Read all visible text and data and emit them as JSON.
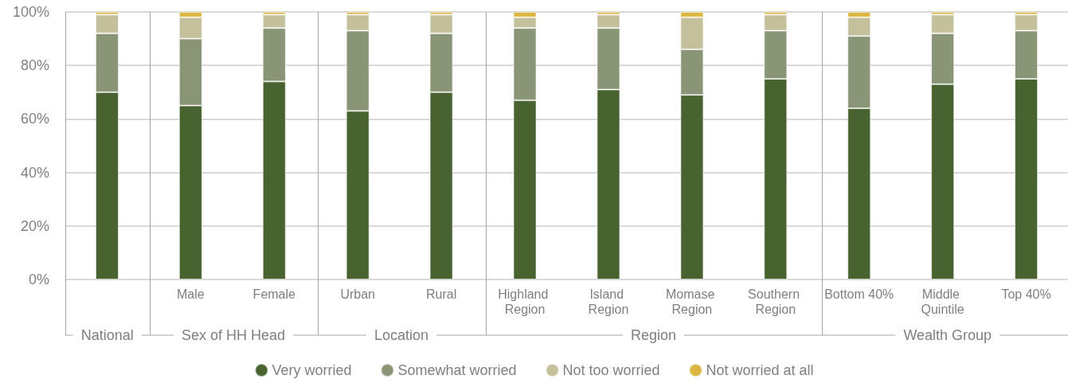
{
  "chart_data": {
    "type": "bar",
    "stacked": true,
    "categories": [
      null,
      "Male",
      "Female",
      "Urban",
      "Rural",
      "Highland Region",
      "Island Region",
      "Momase Region",
      "Southern Region",
      "Bottom 40%",
      "Middle Quintile",
      "Top 40%"
    ],
    "series": [
      {
        "name": "Very worried",
        "color": "#48632f",
        "values": [
          70,
          65,
          74,
          63,
          70,
          67,
          71,
          69,
          75,
          64,
          73,
          75
        ]
      },
      {
        "name": "Somewhat worried",
        "color": "#8a9577",
        "values": [
          22,
          25,
          20,
          30,
          22,
          27,
          23,
          17,
          18,
          27,
          19,
          18
        ]
      },
      {
        "name": "Not too worried",
        "color": "#c3c09b",
        "values": [
          7,
          8,
          5,
          6,
          7,
          4,
          5,
          12,
          6,
          7,
          7,
          6
        ]
      },
      {
        "name": "Not worried at all",
        "color": "#dbb641",
        "values": [
          1,
          2,
          1,
          1,
          1,
          2,
          1,
          2,
          1,
          2,
          1,
          1
        ]
      }
    ],
    "ylim": [
      0,
      100
    ],
    "yticks": [
      {
        "value": 0,
        "label": "0%"
      },
      {
        "value": 20,
        "label": "20%"
      },
      {
        "value": 40,
        "label": "40%"
      },
      {
        "value": 60,
        "label": "60%"
      },
      {
        "value": 80,
        "label": "80%"
      },
      {
        "value": 100,
        "label": "100%"
      }
    ],
    "grid": "y",
    "legend": "bottom",
    "annotations": [
      "National",
      "Sex of HH Head",
      "Location",
      "Region",
      "Wealth Group"
    ]
  }
}
